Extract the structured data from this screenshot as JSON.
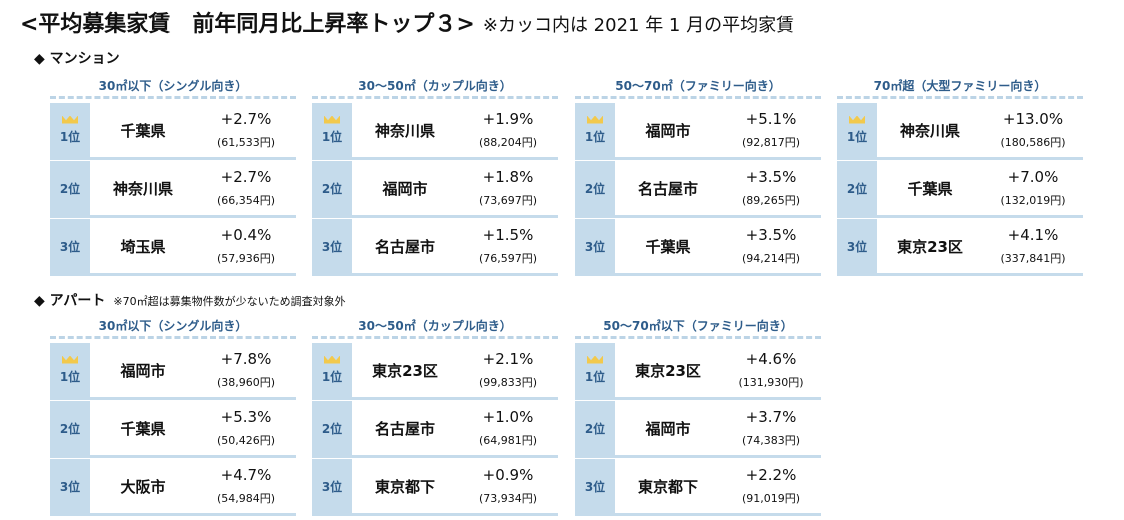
{
  "title": "<平均募集家賃　前年同月比上昇率トップ３>",
  "title_note": "※カッコ内は 2021 年 1 月の平均家賃",
  "mansion": {
    "label": "◆ マンション",
    "cards": [
      {
        "header": "30㎡以下（シングル向き）",
        "rows": [
          {
            "rank": "1位",
            "pref": "千葉県",
            "pct": "+2.7%",
            "rent": "(61,533円)"
          },
          {
            "rank": "2位",
            "pref": "神奈川県",
            "pct": "+2.7%",
            "rent": "(66,354円)"
          },
          {
            "rank": "3位",
            "pref": "埼玉県",
            "pct": "+0.4%",
            "rent": "(57,936円)"
          }
        ]
      },
      {
        "header": "30～50㎡（カップル向き）",
        "rows": [
          {
            "rank": "1位",
            "pref": "神奈川県",
            "pct": "+1.9%",
            "rent": "(88,204円)"
          },
          {
            "rank": "2位",
            "pref": "福岡市",
            "pct": "+1.8%",
            "rent": "(73,697円)"
          },
          {
            "rank": "3位",
            "pref": "名古屋市",
            "pct": "+1.5%",
            "rent": "(76,597円)"
          }
        ]
      },
      {
        "header": "50～70㎡（ファミリー向き）",
        "rows": [
          {
            "rank": "1位",
            "pref": "福岡市",
            "pct": "+5.1%",
            "rent": "(92,817円)"
          },
          {
            "rank": "2位",
            "pref": "名古屋市",
            "pct": "+3.5%",
            "rent": "(89,265円)"
          },
          {
            "rank": "3位",
            "pref": "千葉県",
            "pct": "+3.5%",
            "rent": "(94,214円)"
          }
        ]
      },
      {
        "header": "70㎡超（大型ファミリー向き）",
        "rows": [
          {
            "rank": "1位",
            "pref": "神奈川県",
            "pct": "+13.0%",
            "rent": "(180,586円)"
          },
          {
            "rank": "2位",
            "pref": "千葉県",
            "pct": "+7.0%",
            "rent": "(132,019円)"
          },
          {
            "rank": "3位",
            "pref": "東京23区",
            "pct": "+4.1%",
            "rent": "(337,841円)"
          }
        ]
      }
    ]
  },
  "apartment": {
    "label": "◆ アパート",
    "note": "※70㎡超は募集物件数が少ないため調査対象外",
    "cards": [
      {
        "header": "30㎡以下（シングル向き）",
        "rows": [
          {
            "rank": "1位",
            "pref": "福岡市",
            "pct": "+7.8%",
            "rent": "(38,960円)"
          },
          {
            "rank": "2位",
            "pref": "千葉県",
            "pct": "+5.3%",
            "rent": "(50,426円)"
          },
          {
            "rank": "3位",
            "pref": "大阪市",
            "pct": "+4.7%",
            "rent": "(54,984円)"
          }
        ]
      },
      {
        "header": "30～50㎡（カップル向き）",
        "rows": [
          {
            "rank": "1位",
            "pref": "東京23区",
            "pct": "+2.1%",
            "rent": "(99,833円)"
          },
          {
            "rank": "2位",
            "pref": "名古屋市",
            "pct": "+1.0%",
            "rent": "(64,981円)"
          },
          {
            "rank": "3位",
            "pref": "東京都下",
            "pct": "+0.9%",
            "rent": "(73,934円)"
          }
        ]
      },
      {
        "header": "50～70㎡以下（ファミリー向き）",
        "rows": [
          {
            "rank": "1位",
            "pref": "東京23区",
            "pct": "+4.6%",
            "rent": "(131,930円)"
          },
          {
            "rank": "2位",
            "pref": "福岡市",
            "pct": "+3.7%",
            "rent": "(74,383円)"
          },
          {
            "rank": "3位",
            "pref": "東京都下",
            "pct": "+2.2%",
            "rent": "(91,019円)"
          }
        ]
      }
    ]
  }
}
